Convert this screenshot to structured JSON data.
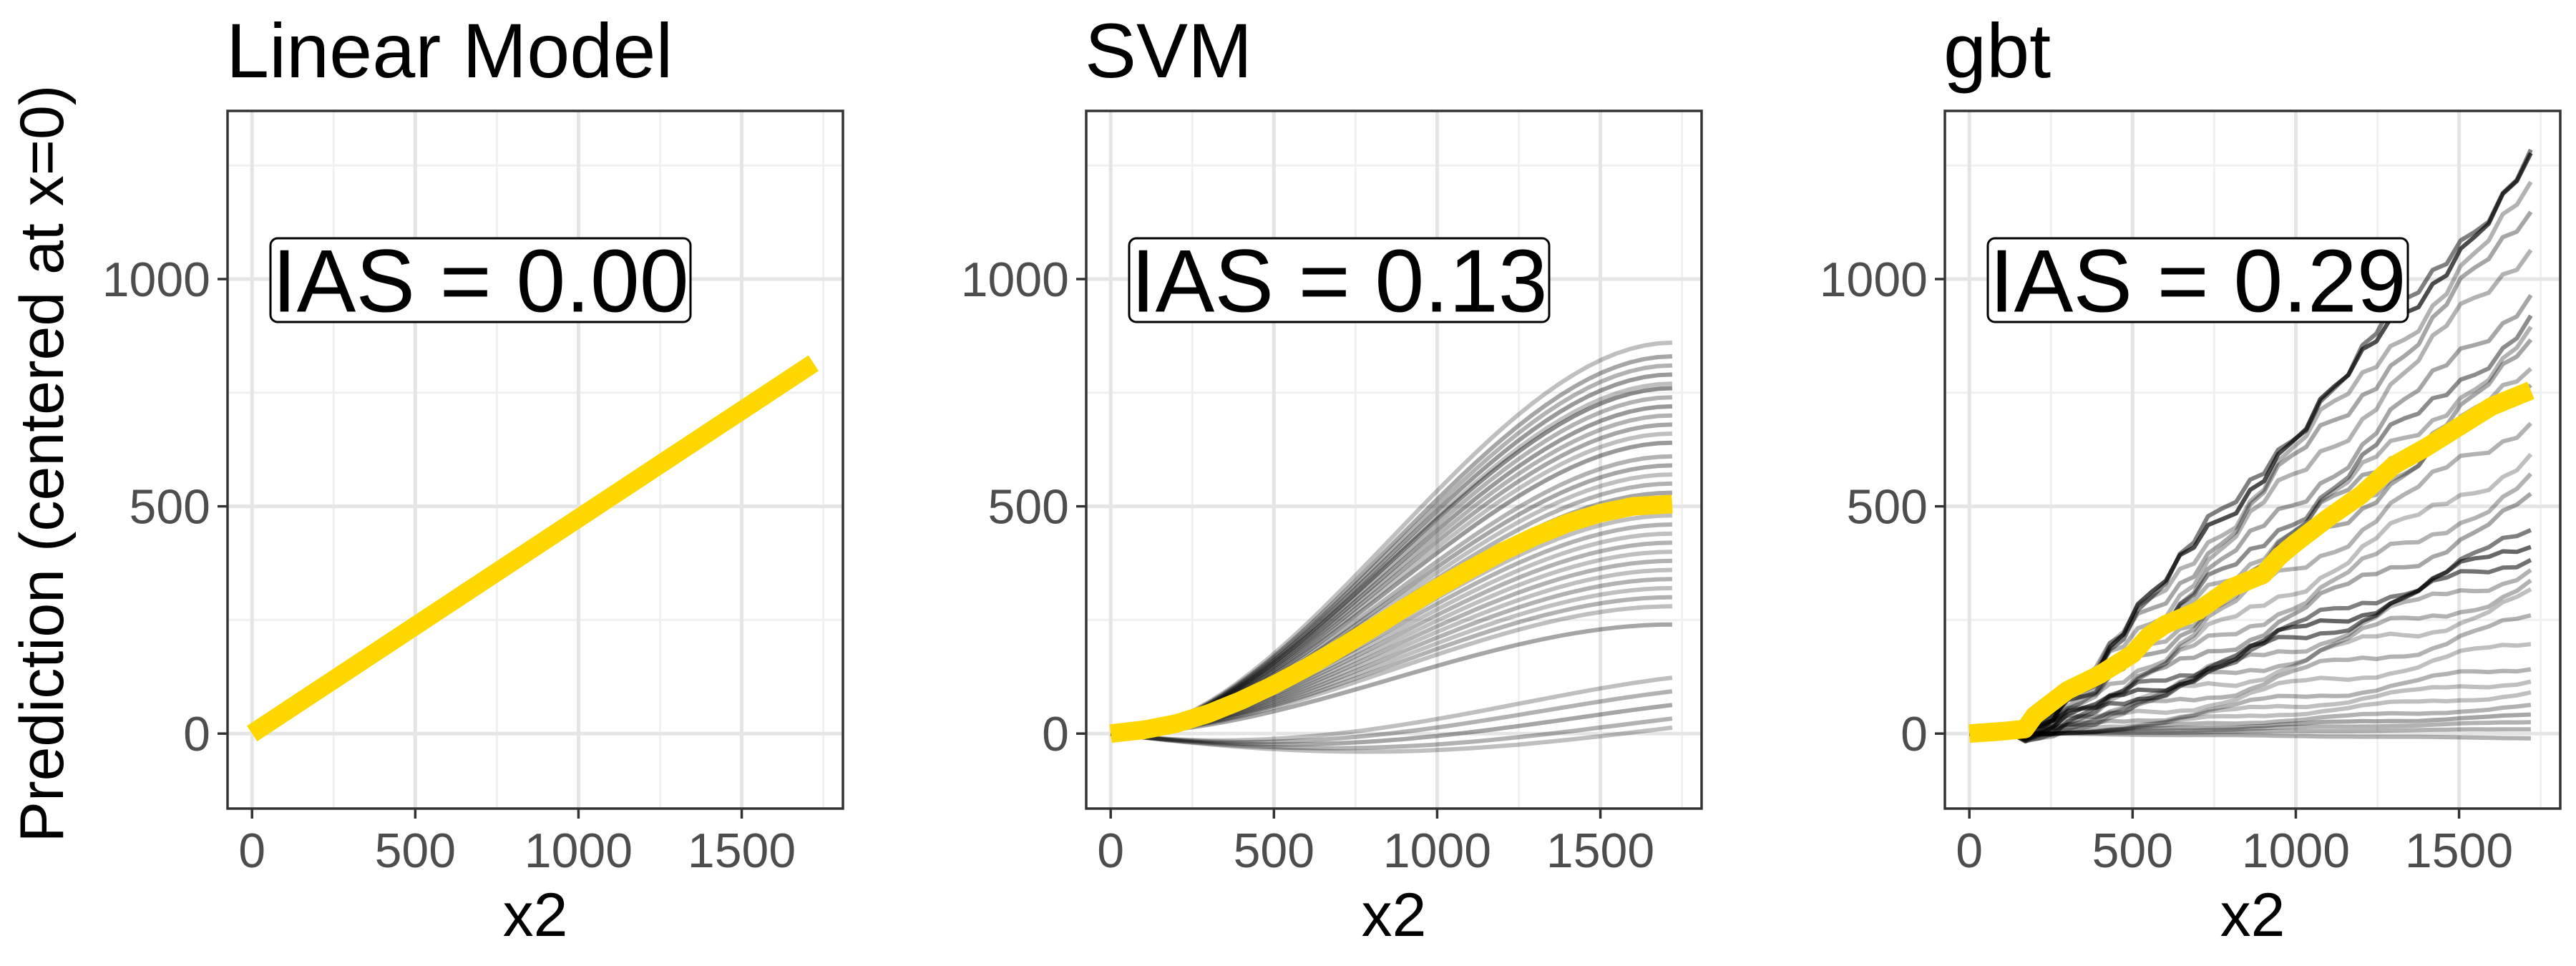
{
  "figure": {
    "ylabel": "Prediction (centered at x=0)",
    "accent_color": "#FFD700",
    "ice_color": "#000000"
  },
  "chart_data": [
    {
      "type": "line",
      "title": "Linear Model",
      "xlabel": "x2",
      "ylabel": "Prediction (centered at x=0)",
      "xlim": [
        -75,
        1810
      ],
      "ylim": [
        -165,
        1370
      ],
      "xticks": [
        0,
        500,
        1000,
        1500
      ],
      "yticks": [
        0,
        500,
        1000
      ],
      "grid": true,
      "annotation": "IAS = 0.00",
      "pdp": {
        "x": [
          0,
          1720
        ],
        "y": [
          0,
          815
        ]
      },
      "ice": []
    },
    {
      "type": "line",
      "title": "SVM",
      "xlabel": "x2",
      "ylabel": "Prediction (centered at x=0)",
      "xlim": [
        -75,
        1810
      ],
      "ylim": [
        -165,
        1370
      ],
      "xticks": [
        0,
        500,
        1000,
        1500
      ],
      "yticks": [
        0,
        500,
        1000
      ],
      "grid": true,
      "annotation": "IAS = 0.13",
      "pdp": {
        "x": [
          0,
          100,
          200,
          300,
          400,
          500,
          600,
          700,
          800,
          900,
          1000,
          1100,
          1200,
          1300,
          1400,
          1500,
          1600,
          1720
        ],
        "y": [
          0,
          8,
          22,
          44,
          73,
          107,
          145,
          187,
          231,
          276,
          320,
          361,
          400,
          434,
          463,
          485,
          500,
          505
        ]
      },
      "ice": [
        {
          "end": 860,
          "opacity": 0.25
        },
        {
          "end": 830,
          "opacity": 0.35
        },
        {
          "end": 810,
          "opacity": 0.3
        },
        {
          "end": 790,
          "opacity": 0.4
        },
        {
          "end": 770,
          "opacity": 0.25
        },
        {
          "end": 760,
          "opacity": 0.45
        },
        {
          "end": 740,
          "opacity": 0.3
        },
        {
          "end": 720,
          "opacity": 0.4
        },
        {
          "end": 700,
          "opacity": 0.3
        },
        {
          "end": 680,
          "opacity": 0.35
        },
        {
          "end": 660,
          "opacity": 0.25
        },
        {
          "end": 640,
          "opacity": 0.4
        },
        {
          "end": 610,
          "opacity": 0.3
        },
        {
          "end": 590,
          "opacity": 0.35
        },
        {
          "end": 570,
          "opacity": 0.25
        },
        {
          "end": 550,
          "opacity": 0.3
        },
        {
          "end": 530,
          "opacity": 0.35
        },
        {
          "end": 500,
          "opacity": 0.3
        },
        {
          "end": 480,
          "opacity": 0.25
        },
        {
          "end": 460,
          "opacity": 0.3
        },
        {
          "end": 440,
          "opacity": 0.25
        },
        {
          "end": 420,
          "opacity": 0.3
        },
        {
          "end": 400,
          "opacity": 0.25
        },
        {
          "end": 380,
          "opacity": 0.3
        },
        {
          "end": 360,
          "opacity": 0.25
        },
        {
          "end": 340,
          "opacity": 0.3
        },
        {
          "end": 320,
          "opacity": 0.25
        },
        {
          "end": 300,
          "opacity": 0.3
        },
        {
          "end": 280,
          "opacity": 0.25
        },
        {
          "end": 240,
          "opacity": 0.35
        },
        {
          "end": 140,
          "opacity": 0.25
        },
        {
          "end": 110,
          "opacity": 0.3
        },
        {
          "end": 80,
          "opacity": 0.35
        },
        {
          "end": 50,
          "opacity": 0.3
        },
        {
          "end": 30,
          "opacity": 0.25
        }
      ]
    },
    {
      "type": "line",
      "title": "gbt",
      "xlabel": "x2",
      "ylabel": "Prediction (centered at x=0)",
      "xlim": [
        -75,
        1810
      ],
      "ylim": [
        -165,
        1370
      ],
      "xticks": [
        0,
        500,
        1000,
        1500
      ],
      "yticks": [
        0,
        500,
        1000
      ],
      "grid": true,
      "annotation": "IAS = 0.29",
      "pdp": {
        "x": [
          0,
          100,
          170,
          200,
          300,
          400,
          500,
          550,
          600,
          700,
          800,
          900,
          950,
          1000,
          1100,
          1200,
          1300,
          1400,
          1500,
          1600,
          1720
        ],
        "y": [
          0,
          5,
          10,
          40,
          95,
          130,
          175,
          215,
          240,
          270,
          320,
          350,
          390,
          420,
          475,
          525,
          590,
          630,
          675,
          720,
          755
        ]
      },
      "ice": [
        {
          "end": 1280,
          "opacity": 0.5
        },
        {
          "end": 1260,
          "opacity": 0.7
        },
        {
          "end": 1200,
          "opacity": 0.3
        },
        {
          "end": 1150,
          "opacity": 0.35
        },
        {
          "end": 1080,
          "opacity": 0.3
        },
        {
          "end": 980,
          "opacity": 0.35
        },
        {
          "end": 920,
          "opacity": 0.45
        },
        {
          "end": 880,
          "opacity": 0.3
        },
        {
          "end": 850,
          "opacity": 0.35
        },
        {
          "end": 800,
          "opacity": 0.3
        },
        {
          "end": 780,
          "opacity": 0.35
        },
        {
          "end": 700,
          "opacity": 0.3
        },
        {
          "end": 620,
          "opacity": 0.25
        },
        {
          "end": 560,
          "opacity": 0.3
        },
        {
          "end": 510,
          "opacity": 0.35
        },
        {
          "end": 440,
          "opacity": 0.5
        },
        {
          "end": 420,
          "opacity": 0.6
        },
        {
          "end": 400,
          "opacity": 0.55
        },
        {
          "end": 370,
          "opacity": 0.3
        },
        {
          "end": 330,
          "opacity": 0.3
        },
        {
          "end": 300,
          "opacity": 0.25
        },
        {
          "end": 250,
          "opacity": 0.3
        },
        {
          "end": 200,
          "opacity": 0.25
        },
        {
          "end": 150,
          "opacity": 0.3
        },
        {
          "end": 120,
          "opacity": 0.25
        },
        {
          "end": 90,
          "opacity": 0.25
        },
        {
          "end": 60,
          "opacity": 0.3
        },
        {
          "end": 40,
          "opacity": 0.35
        },
        {
          "end": 25,
          "opacity": 0.3
        },
        {
          "end": 10,
          "opacity": 0.3
        },
        {
          "end": -10,
          "opacity": 0.3
        }
      ]
    }
  ]
}
